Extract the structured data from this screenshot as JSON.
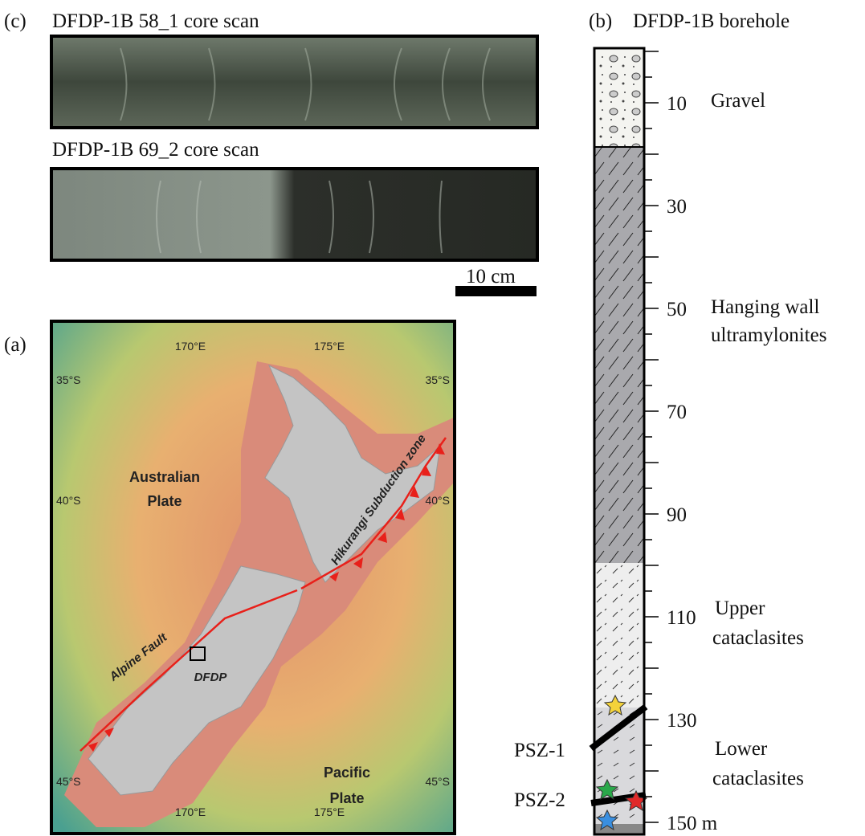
{
  "panel_c": {
    "label": "(c)",
    "core_scans": [
      {
        "title": "DFDP-1B 58_1 core scan"
      },
      {
        "title": "DFDP-1B 69_2 core scan"
      }
    ],
    "scale_bar": "10 cm"
  },
  "panel_a": {
    "label": "(a)",
    "lon_top": [
      "170°E",
      "175°E"
    ],
    "lon_bottom": [
      "170°E",
      "175°E"
    ],
    "lat_left": [
      "35°S",
      "40°S",
      "45°S"
    ],
    "lat_right": [
      "35°S",
      "40°S",
      "45°S"
    ],
    "annotations": {
      "australian": [
        "Australian",
        "Plate"
      ],
      "pacific": [
        "Pacific",
        "Plate"
      ],
      "hikurangi": "Hikurangi Subduction zone",
      "alpine": "Alpine Fault",
      "dfdp": "DFDP"
    }
  },
  "panel_b": {
    "label": "(b)",
    "title": "DFDP-1B borehole",
    "depth_labels": [
      "10",
      "30",
      "50",
      "70",
      "90",
      "110",
      "130",
      "150 m"
    ],
    "units": [
      [
        "Gravel"
      ],
      [
        "Hanging wall",
        "ultramylonites"
      ],
      [
        "Upper",
        "cataclasites"
      ],
      [
        "Lower",
        "cataclasites"
      ]
    ],
    "psz": [
      "PSZ-1",
      "PSZ-2"
    ]
  }
}
